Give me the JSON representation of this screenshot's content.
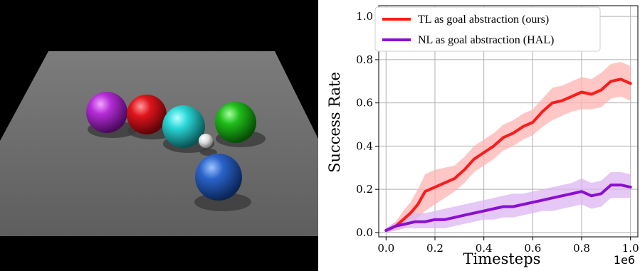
{
  "scene": {
    "description_items": [
      "purple-sphere",
      "red-sphere",
      "cyan-sphere",
      "white-sphere",
      "green-sphere",
      "blue-sphere"
    ],
    "colors": {
      "background": "#000000",
      "table": "#6f6f6f",
      "purple": "#b42cd6",
      "red": "#e0141c",
      "cyan": "#2ad6d6",
      "green": "#1fbd1a",
      "blue": "#2a63c9",
      "white": "#e8e8e8"
    }
  },
  "chart_data": {
    "type": "line",
    "xlabel": "Timesteps",
    "ylabel": "Success Rate",
    "x_offset_label": "1e6",
    "xlim": [
      -0.03,
      1.03
    ],
    "ylim": [
      -0.02,
      1.05
    ],
    "xticks": [
      "0.0",
      "0.2",
      "0.4",
      "0.6",
      "0.8",
      "1.0"
    ],
    "yticks": [
      "0.0",
      "0.2",
      "0.4",
      "0.6",
      "0.8",
      "1.0"
    ],
    "grid": true,
    "legend_position": "top-left",
    "series": [
      {
        "name": "TL as goal abstraction (ours)",
        "color": "#ff1a1a",
        "band_color": "#ffb3b3",
        "points": [
          [
            0.0,
            0.01
          ],
          [
            0.04,
            0.03
          ],
          [
            0.07,
            0.06
          ],
          [
            0.1,
            0.09
          ],
          [
            0.13,
            0.13
          ],
          [
            0.16,
            0.19
          ],
          [
            0.2,
            0.21
          ],
          [
            0.24,
            0.23
          ],
          [
            0.28,
            0.25
          ],
          [
            0.32,
            0.29
          ],
          [
            0.36,
            0.34
          ],
          [
            0.4,
            0.37
          ],
          [
            0.44,
            0.4
          ],
          [
            0.48,
            0.44
          ],
          [
            0.52,
            0.46
          ],
          [
            0.56,
            0.49
          ],
          [
            0.6,
            0.51
          ],
          [
            0.64,
            0.56
          ],
          [
            0.68,
            0.6
          ],
          [
            0.72,
            0.61
          ],
          [
            0.76,
            0.63
          ],
          [
            0.8,
            0.65
          ],
          [
            0.84,
            0.64
          ],
          [
            0.88,
            0.66
          ],
          [
            0.92,
            0.7
          ],
          [
            0.96,
            0.71
          ],
          [
            1.0,
            0.69
          ]
        ],
        "lower": [
          0.0,
          0.01,
          0.02,
          0.04,
          0.07,
          0.1,
          0.13,
          0.16,
          0.19,
          0.23,
          0.28,
          0.31,
          0.34,
          0.38,
          0.4,
          0.43,
          0.45,
          0.49,
          0.52,
          0.54,
          0.56,
          0.57,
          0.57,
          0.58,
          0.62,
          0.63,
          0.61
        ],
        "upper": [
          0.02,
          0.05,
          0.1,
          0.14,
          0.2,
          0.27,
          0.29,
          0.3,
          0.31,
          0.35,
          0.4,
          0.43,
          0.46,
          0.5,
          0.52,
          0.55,
          0.57,
          0.62,
          0.67,
          0.68,
          0.7,
          0.72,
          0.71,
          0.74,
          0.78,
          0.79,
          0.77
        ]
      },
      {
        "name": "NL as goal abstraction (HAL)",
        "color": "#8a0fd1",
        "band_color": "#dcb6f2",
        "points": [
          [
            0.0,
            0.01
          ],
          [
            0.04,
            0.03
          ],
          [
            0.08,
            0.04
          ],
          [
            0.12,
            0.05
          ],
          [
            0.16,
            0.05
          ],
          [
            0.2,
            0.06
          ],
          [
            0.24,
            0.06
          ],
          [
            0.28,
            0.07
          ],
          [
            0.32,
            0.08
          ],
          [
            0.36,
            0.09
          ],
          [
            0.4,
            0.1
          ],
          [
            0.44,
            0.11
          ],
          [
            0.48,
            0.12
          ],
          [
            0.52,
            0.12
          ],
          [
            0.56,
            0.13
          ],
          [
            0.6,
            0.14
          ],
          [
            0.64,
            0.15
          ],
          [
            0.68,
            0.16
          ],
          [
            0.72,
            0.17
          ],
          [
            0.76,
            0.18
          ],
          [
            0.8,
            0.19
          ],
          [
            0.84,
            0.17
          ],
          [
            0.88,
            0.18
          ],
          [
            0.92,
            0.22
          ],
          [
            0.96,
            0.22
          ],
          [
            1.0,
            0.21
          ]
        ],
        "lower": [
          0.0,
          0.01,
          0.02,
          0.02,
          0.02,
          0.02,
          0.02,
          0.03,
          0.04,
          0.05,
          0.06,
          0.06,
          0.07,
          0.07,
          0.08,
          0.09,
          0.1,
          0.1,
          0.11,
          0.12,
          0.13,
          0.11,
          0.12,
          0.16,
          0.16,
          0.16
        ],
        "upper": [
          0.02,
          0.05,
          0.07,
          0.09,
          0.09,
          0.1,
          0.11,
          0.12,
          0.13,
          0.14,
          0.15,
          0.16,
          0.17,
          0.18,
          0.18,
          0.19,
          0.2,
          0.21,
          0.22,
          0.23,
          0.25,
          0.23,
          0.24,
          0.28,
          0.28,
          0.27
        ]
      }
    ]
  }
}
